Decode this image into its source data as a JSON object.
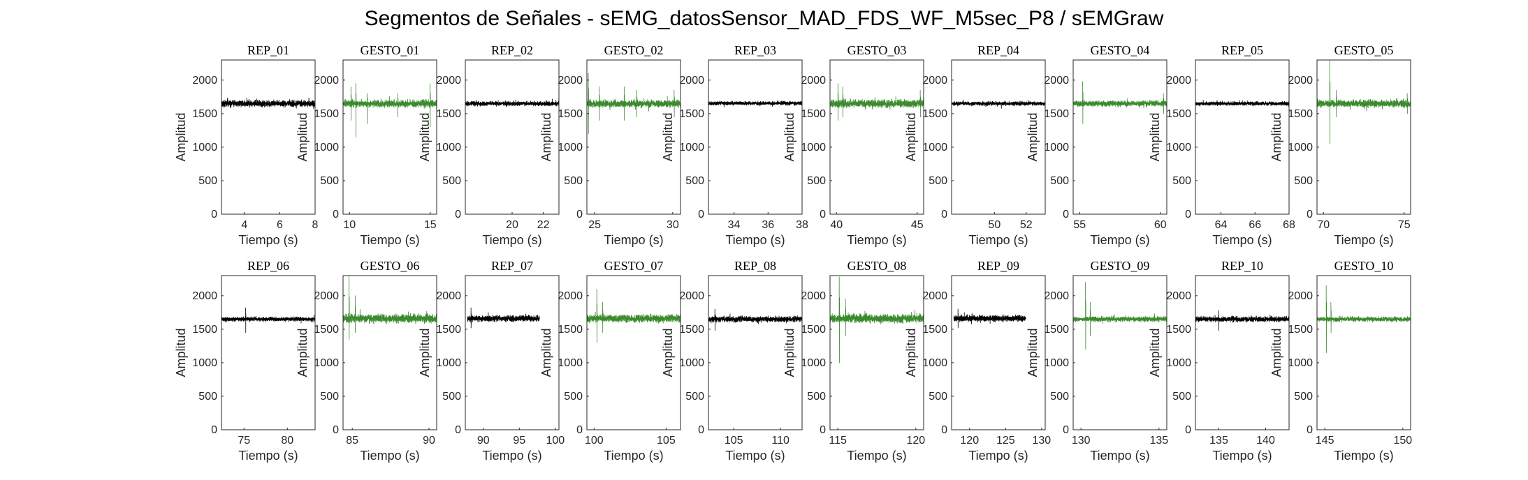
{
  "figure_title": "Segmentos de Señales - sEMG_datosSensor_MAD_FDS_WF_M5sec_P8 / sEMGraw",
  "colors": {
    "rep": "#000000",
    "gesto": "#3b8a2e",
    "axes": "#262626"
  },
  "chart_data": [
    {
      "type": "line",
      "title": "REP_01",
      "xlabel": "Tiempo (s)",
      "ylabel": "Amplitud",
      "xlim": [
        2.7,
        8
      ],
      "ylim": [
        0,
        2300
      ],
      "xticks": [
        4,
        6,
        8
      ],
      "yticks": [
        0,
        500,
        1000,
        1500,
        2000
      ],
      "data_x": [
        2.7,
        8.0
      ],
      "baseline": 1650,
      "noise": 50,
      "color_key": "rep",
      "spikes": []
    },
    {
      "type": "line",
      "title": "GESTO_01",
      "xlabel": "Tiempo (s)",
      "ylabel": "Amplitud",
      "xlim": [
        9.6,
        15.4
      ],
      "ylim": [
        0,
        2300
      ],
      "xticks": [
        10,
        15
      ],
      "yticks": [
        0,
        500,
        1000,
        1500,
        2000
      ],
      "data_x": [
        9.6,
        15.4
      ],
      "baseline": 1650,
      "noise": 55,
      "color_key": "gesto",
      "spikes": [
        {
          "x": 10.1,
          "max": 1900,
          "min": 1400
        },
        {
          "x": 10.4,
          "max": 1950,
          "min": 1150
        },
        {
          "x": 11.1,
          "max": 1800,
          "min": 1350
        },
        {
          "x": 13.0,
          "max": 1800,
          "min": 1450
        },
        {
          "x": 15.0,
          "max": 1950,
          "min": 1300
        }
      ]
    },
    {
      "type": "line",
      "title": "REP_02",
      "xlabel": "Tiempo (s)",
      "ylabel": "Amplitud",
      "xlim": [
        17,
        23
      ],
      "ylim": [
        0,
        2300
      ],
      "xticks": [
        20,
        22
      ],
      "yticks": [
        0,
        500,
        1000,
        1500,
        2000
      ],
      "data_x": [
        17.0,
        23.0
      ],
      "baseline": 1650,
      "noise": 35,
      "color_key": "rep",
      "spikes": []
    },
    {
      "type": "line",
      "title": "GESTO_02",
      "xlabel": "Tiempo (s)",
      "ylabel": "Amplitud",
      "xlim": [
        24.5,
        30.5
      ],
      "ylim": [
        0,
        2300
      ],
      "xticks": [
        25,
        30
      ],
      "yticks": [
        0,
        500,
        1000,
        1500,
        2000
      ],
      "data_x": [
        24.5,
        30.5
      ],
      "baseline": 1650,
      "noise": 55,
      "color_key": "gesto",
      "spikes": [
        {
          "x": 24.6,
          "max": 2100,
          "min": 1200
        },
        {
          "x": 25.3,
          "max": 1900,
          "min": 1400
        },
        {
          "x": 26.9,
          "max": 1900,
          "min": 1400
        },
        {
          "x": 27.7,
          "max": 1850,
          "min": 1450
        },
        {
          "x": 30.1,
          "max": 1850,
          "min": 1450
        }
      ]
    },
    {
      "type": "line",
      "title": "REP_03",
      "xlabel": "Tiempo (s)",
      "ylabel": "Amplitud",
      "xlim": [
        32.5,
        38
      ],
      "ylim": [
        0,
        2300
      ],
      "xticks": [
        34,
        36,
        38
      ],
      "yticks": [
        0,
        500,
        1000,
        1500,
        2000
      ],
      "data_x": [
        32.5,
        38.0
      ],
      "baseline": 1655,
      "noise": 30,
      "color_key": "rep",
      "spikes": []
    },
    {
      "type": "line",
      "title": "GESTO_03",
      "xlabel": "Tiempo (s)",
      "ylabel": "Amplitud",
      "xlim": [
        39.6,
        45.4
      ],
      "ylim": [
        0,
        2300
      ],
      "xticks": [
        40,
        45
      ],
      "yticks": [
        0,
        500,
        1000,
        1500,
        2000
      ],
      "data_x": [
        39.6,
        45.4
      ],
      "baseline": 1650,
      "noise": 60,
      "color_key": "gesto",
      "spikes": [
        {
          "x": 40.1,
          "max": 1950,
          "min": 1400
        },
        {
          "x": 40.4,
          "max": 1900,
          "min": 1450
        },
        {
          "x": 45.2,
          "max": 1850,
          "min": 1450
        }
      ]
    },
    {
      "type": "line",
      "title": "REP_04",
      "xlabel": "Tiempo (s)",
      "ylabel": "Amplitud",
      "xlim": [
        47.3,
        53.2
      ],
      "ylim": [
        0,
        2300
      ],
      "xticks": [
        50,
        52
      ],
      "yticks": [
        0,
        500,
        1000,
        1500,
        2000
      ],
      "data_x": [
        47.3,
        53.2
      ],
      "baseline": 1650,
      "noise": 30,
      "color_key": "rep",
      "spikes": []
    },
    {
      "type": "line",
      "title": "GESTO_04",
      "xlabel": "Tiempo (s)",
      "ylabel": "Amplitud",
      "xlim": [
        54.6,
        60.4
      ],
      "ylim": [
        0,
        2300
      ],
      "xticks": [
        55,
        60
      ],
      "yticks": [
        0,
        500,
        1000,
        1500,
        2000
      ],
      "data_x": [
        54.6,
        60.4
      ],
      "baseline": 1650,
      "noise": 45,
      "color_key": "gesto",
      "spikes": [
        {
          "x": 55.2,
          "max": 1980,
          "min": 1350
        },
        {
          "x": 60.2,
          "max": 1800,
          "min": 1500
        }
      ]
    },
    {
      "type": "line",
      "title": "REP_05",
      "xlabel": "Tiempo (s)",
      "ylabel": "Amplitud",
      "xlim": [
        62.5,
        68
      ],
      "ylim": [
        0,
        2300
      ],
      "xticks": [
        64,
        66,
        68
      ],
      "yticks": [
        0,
        500,
        1000,
        1500,
        2000
      ],
      "data_x": [
        62.5,
        68.0
      ],
      "baseline": 1650,
      "noise": 30,
      "color_key": "rep",
      "spikes": []
    },
    {
      "type": "line",
      "title": "GESTO_05",
      "xlabel": "Tiempo (s)",
      "ylabel": "Amplitud",
      "xlim": [
        69.6,
        75.4
      ],
      "ylim": [
        0,
        2300
      ],
      "xticks": [
        70,
        75
      ],
      "yticks": [
        0,
        500,
        1000,
        1500,
        2000
      ],
      "data_x": [
        69.6,
        75.4
      ],
      "baseline": 1650,
      "noise": 55,
      "color_key": "gesto",
      "spikes": [
        {
          "x": 70.4,
          "max": 2300,
          "min": 1050
        },
        {
          "x": 70.8,
          "max": 1850,
          "min": 1450
        },
        {
          "x": 75.2,
          "max": 1800,
          "min": 1500
        }
      ]
    },
    {
      "type": "line",
      "title": "REP_06",
      "xlabel": "Tiempo (s)",
      "ylabel": "Amplitud",
      "xlim": [
        72.4,
        83.2
      ],
      "ylim": [
        0,
        2300
      ],
      "xticks": [
        75,
        80
      ],
      "yticks": [
        0,
        500,
        1000,
        1500,
        2000
      ],
      "data_x": [
        72.4,
        83.2
      ],
      "baseline": 1650,
      "noise": 35,
      "color_key": "rep",
      "spikes": [
        {
          "x": 75.2,
          "max": 1820,
          "min": 1450
        }
      ]
    },
    {
      "type": "line",
      "title": "GESTO_06",
      "xlabel": "Tiempo (s)",
      "ylabel": "Amplitud",
      "xlim": [
        84.4,
        90.5
      ],
      "ylim": [
        0,
        2300
      ],
      "xticks": [
        85,
        90
      ],
      "yticks": [
        0,
        500,
        1000,
        1500,
        2000
      ],
      "data_x": [
        84.4,
        90.5
      ],
      "baseline": 1660,
      "noise": 65,
      "color_key": "gesto",
      "spikes": [
        {
          "x": 84.8,
          "max": 2300,
          "min": 1350
        },
        {
          "x": 85.2,
          "max": 2000,
          "min": 1450
        }
      ]
    },
    {
      "type": "line",
      "title": "REP_07",
      "xlabel": "Tiempo (s)",
      "ylabel": "Amplitud",
      "xlim": [
        87.5,
        100.5
      ],
      "ylim": [
        0,
        2300
      ],
      "xticks": [
        90,
        95,
        100
      ],
      "yticks": [
        0,
        500,
        1000,
        1500,
        2000
      ],
      "data_x": [
        87.8,
        97.8
      ],
      "baseline": 1660,
      "noise": 45,
      "color_key": "rep",
      "spikes": [
        {
          "x": 88.3,
          "max": 1820,
          "min": 1520
        }
      ]
    },
    {
      "type": "line",
      "title": "GESTO_07",
      "xlabel": "Tiempo (s)",
      "ylabel": "Amplitud",
      "xlim": [
        99.5,
        106
      ],
      "ylim": [
        0,
        2300
      ],
      "xticks": [
        100,
        105
      ],
      "yticks": [
        0,
        500,
        1000,
        1500,
        2000
      ],
      "data_x": [
        99.5,
        106.0
      ],
      "baseline": 1660,
      "noise": 60,
      "color_key": "gesto",
      "spikes": [
        {
          "x": 100.2,
          "max": 2100,
          "min": 1300
        },
        {
          "x": 100.6,
          "max": 1900,
          "min": 1450
        }
      ]
    },
    {
      "type": "line",
      "title": "REP_08",
      "xlabel": "Tiempo (s)",
      "ylabel": "Amplitud",
      "xlim": [
        102.3,
        112.3
      ],
      "ylim": [
        0,
        2300
      ],
      "xticks": [
        105,
        110
      ],
      "yticks": [
        0,
        500,
        1000,
        1500,
        2000
      ],
      "data_x": [
        102.3,
        112.3
      ],
      "baseline": 1650,
      "noise": 45,
      "color_key": "rep",
      "spikes": [
        {
          "x": 103.0,
          "max": 1800,
          "min": 1480
        }
      ]
    },
    {
      "type": "line",
      "title": "GESTO_08",
      "xlabel": "Tiempo (s)",
      "ylabel": "Amplitud",
      "xlim": [
        114.5,
        120.5
      ],
      "ylim": [
        0,
        2300
      ],
      "xticks": [
        115,
        120
      ],
      "yticks": [
        0,
        500,
        1000,
        1500,
        2000
      ],
      "data_x": [
        114.5,
        120.5
      ],
      "baseline": 1660,
      "noise": 65,
      "color_key": "gesto",
      "spikes": [
        {
          "x": 115.1,
          "max": 2280,
          "min": 1000
        },
        {
          "x": 115.5,
          "max": 1950,
          "min": 1400
        }
      ]
    },
    {
      "type": "line",
      "title": "REP_09",
      "xlabel": "Tiempo (s)",
      "ylabel": "Amplitud",
      "xlim": [
        117.5,
        130.5
      ],
      "ylim": [
        0,
        2300
      ],
      "xticks": [
        120,
        125,
        130
      ],
      "yticks": [
        0,
        500,
        1000,
        1500,
        2000
      ],
      "data_x": [
        117.8,
        127.8
      ],
      "baseline": 1660,
      "noise": 45,
      "color_key": "rep",
      "spikes": [
        {
          "x": 118.4,
          "max": 1800,
          "min": 1520
        }
      ]
    },
    {
      "type": "line",
      "title": "GESTO_09",
      "xlabel": "Tiempo (s)",
      "ylabel": "Amplitud",
      "xlim": [
        129.5,
        135.5
      ],
      "ylim": [
        0,
        2300
      ],
      "xticks": [
        130,
        135
      ],
      "yticks": [
        0,
        500,
        1000,
        1500,
        2000
      ],
      "data_x": [
        129.5,
        135.5
      ],
      "baseline": 1650,
      "noise": 40,
      "color_key": "gesto",
      "spikes": [
        {
          "x": 130.3,
          "max": 2200,
          "min": 1200
        },
        {
          "x": 130.6,
          "max": 1900,
          "min": 1400
        }
      ]
    },
    {
      "type": "line",
      "title": "REP_10",
      "xlabel": "Tiempo (s)",
      "ylabel": "Amplitud",
      "xlim": [
        132.5,
        142.5
      ],
      "ylim": [
        0,
        2300
      ],
      "xticks": [
        135,
        140
      ],
      "yticks": [
        0,
        500,
        1000,
        1500,
        2000
      ],
      "data_x": [
        132.5,
        142.5
      ],
      "baseline": 1650,
      "noise": 40,
      "color_key": "rep",
      "spikes": [
        {
          "x": 135.0,
          "max": 1780,
          "min": 1480
        }
      ]
    },
    {
      "type": "line",
      "title": "GESTO_10",
      "xlabel": "Tiempo (s)",
      "ylabel": "Amplitud",
      "xlim": [
        144.5,
        150.5
      ],
      "ylim": [
        0,
        2300
      ],
      "xticks": [
        145,
        150
      ],
      "yticks": [
        0,
        500,
        1000,
        1500,
        2000
      ],
      "data_x": [
        144.5,
        150.5
      ],
      "baseline": 1650,
      "noise": 35,
      "color_key": "gesto",
      "spikes": [
        {
          "x": 145.1,
          "max": 2150,
          "min": 1150
        },
        {
          "x": 145.4,
          "max": 1900,
          "min": 1450
        }
      ]
    }
  ]
}
